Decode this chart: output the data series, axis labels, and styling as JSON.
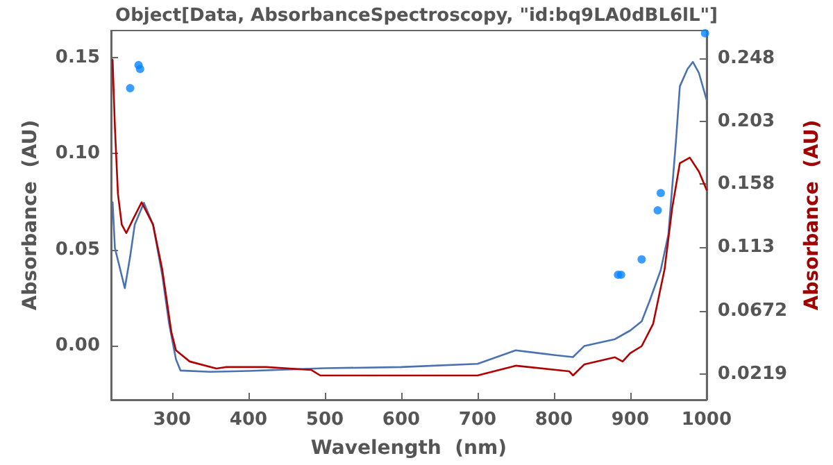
{
  "chart_data": {
    "type": "line",
    "title": "Object[Data, AbsorbanceSpectroscopy, \"id:bq9LA0dBL6lL\"]",
    "xlabel": "Wavelength  (nm)",
    "ylabel": "Absorbance  (AU)",
    "y2label": "Absorbance  (AU)",
    "xlim": [
      220,
      1000
    ],
    "xticks": [
      300,
      400,
      500,
      600,
      700,
      800,
      900,
      1000
    ],
    "ylim": [
      -0.028,
      0.164
    ],
    "yticks": [
      {
        "value": 0,
        "label": "0.00"
      },
      0.05,
      {
        "value": 0.1,
        "label": "0.10"
      },
      0.15
    ],
    "y2lim": [
      0.0036,
      0.268
    ],
    "y2ticks": [
      0.0219,
      0.0672,
      0.113,
      0.158,
      0.203,
      0.248
    ],
    "grid": false,
    "marker": "none",
    "line_style": "solid",
    "series": [
      {
        "color": "#4a72b0",
        "x": [
          222,
          225,
          238,
          245,
          251,
          263,
          275,
          287,
          296,
          305,
          311,
          350,
          400,
          500,
          600,
          700,
          750,
          800,
          825,
          840,
          880,
          900,
          915,
          925,
          940,
          950,
          960,
          965,
          975,
          982,
          990,
          1000
        ],
        "values": [
          0.0747,
          0.051,
          0.03,
          0.0465,
          0.063,
          0.0744,
          0.063,
          0.037,
          0.0116,
          -0.007,
          -0.0128,
          -0.0135,
          -0.013,
          -0.0116,
          -0.011,
          -0.0093,
          -0.0023,
          -0.0047,
          -0.0058,
          0.0,
          0.0035,
          0.008,
          0.0128,
          0.023,
          0.0395,
          0.058,
          0.107,
          0.135,
          0.144,
          0.1477,
          0.1419,
          0.128
        ]
      },
      {
        "axis": "y2",
        "color": "#b00000",
        "x": [
          222,
          225,
          229,
          234,
          240,
          248,
          260,
          275,
          287,
          299,
          305,
          323,
          358,
          370,
          423,
          482,
          494,
          600,
          700,
          750,
          820,
          825,
          840,
          880,
          890,
          900,
          915,
          930,
          945,
          955,
          965,
          978,
          990,
          1000
        ],
        "values": [
          0.247,
          0.199,
          0.151,
          0.129,
          0.123,
          0.132,
          0.145,
          0.129,
          0.097,
          0.052,
          0.039,
          0.031,
          0.026,
          0.027,
          0.027,
          0.025,
          0.021,
          0.021,
          0.021,
          0.028,
          0.024,
          0.021,
          0.029,
          0.034,
          0.031,
          0.037,
          0.042,
          0.058,
          0.097,
          0.141,
          0.173,
          0.177,
          0.167,
          0.154
        ]
      },
      {
        "type": "scatter",
        "marker": "circle",
        "color": "#0a84ff",
        "x": [
          245,
          256,
          258,
          884,
          888,
          915,
          936,
          940,
          998
        ],
        "values": [
          0.134,
          0.146,
          0.144,
          0.037,
          0.037,
          0.045,
          0.0705,
          0.0795,
          0.1626
        ]
      }
    ]
  }
}
